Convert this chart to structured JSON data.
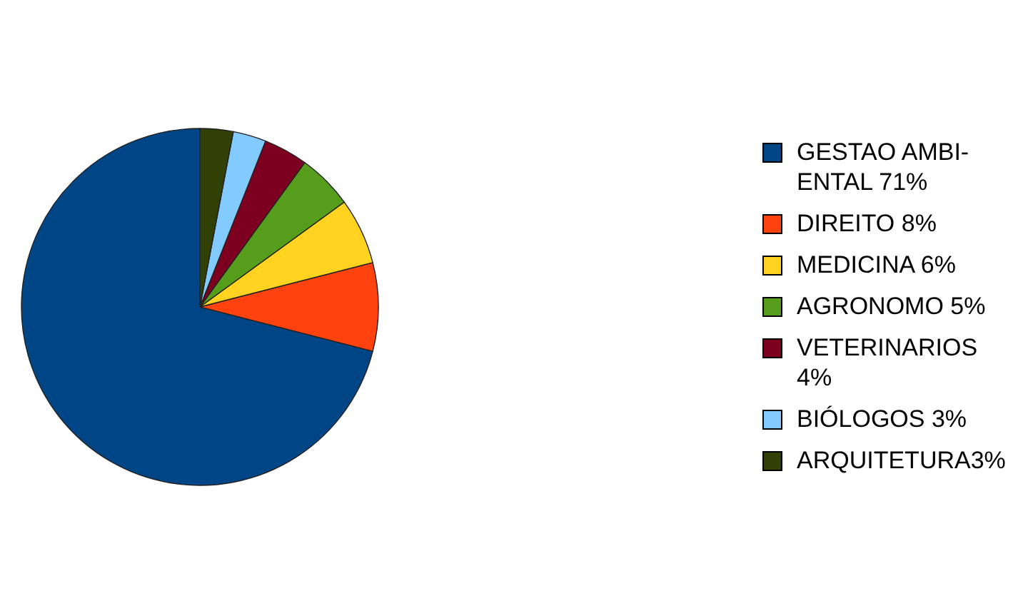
{
  "chart_data": {
    "type": "pie",
    "categories": [
      "GESTAO AMBI-ENTAL 71%",
      "DIREITO 8%",
      "MEDICINA 6%",
      "AGRONOMO 5%",
      "VETERINARIOS 4%",
      "BIÓLOGOS 3%",
      "ARQUITETURA3%"
    ],
    "values": [
      71,
      8,
      6,
      5,
      4,
      3,
      3
    ],
    "colors": [
      "#004586",
      "#ff420e",
      "#ffd320",
      "#579d1c",
      "#7e0021",
      "#83caff",
      "#314004"
    ],
    "legend": "right"
  }
}
